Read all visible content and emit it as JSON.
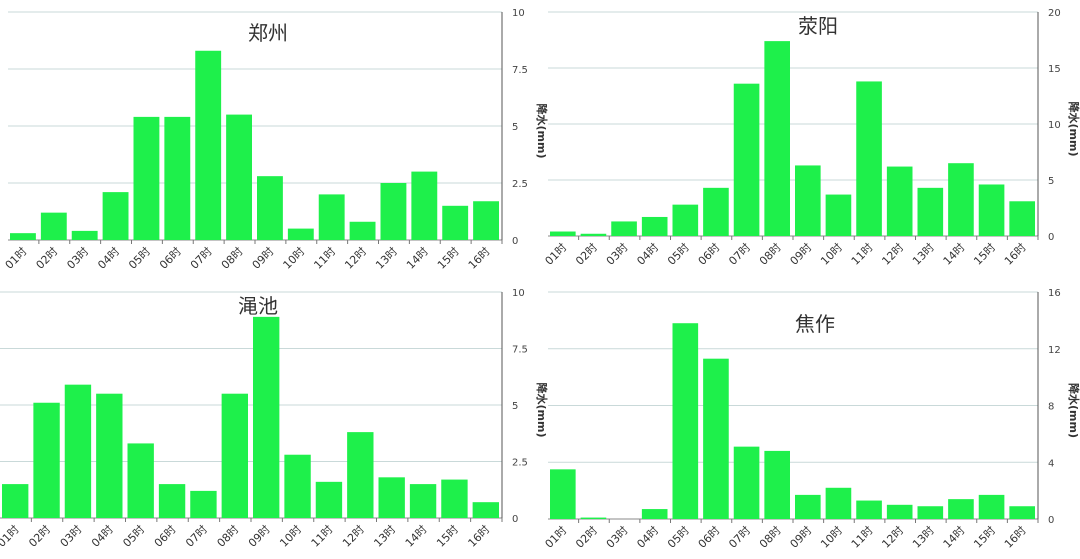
{
  "chart_data": [
    {
      "type": "bar",
      "title": "郑州",
      "ylabel": "降水(mm)",
      "ylim": [
        0,
        10
      ],
      "yticks": [
        "0",
        "2.5",
        "5",
        "7.5",
        "10"
      ],
      "bar_color": "#1ef04b",
      "grid": true,
      "categories": [
        "01时",
        "02时",
        "03时",
        "04时",
        "05时",
        "06时",
        "07时",
        "08时",
        "09时",
        "10时",
        "11时",
        "12时",
        "13时",
        "14时",
        "15时",
        "16时"
      ],
      "values": [
        0.3,
        1.2,
        0.4,
        2.1,
        5.4,
        5.4,
        8.3,
        5.5,
        2.8,
        0.5,
        2.0,
        0.8,
        2.5,
        3.0,
        1.5,
        1.7
      ]
    },
    {
      "type": "bar",
      "title": "荥阳",
      "ylabel": "降水(mm)",
      "ylim": [
        0,
        20
      ],
      "yticks": [
        "0",
        "5",
        "10",
        "15",
        "20"
      ],
      "bar_color": "#1ef04b",
      "grid": true,
      "categories": [
        "01时",
        "02时",
        "03时",
        "04时",
        "05时",
        "06时",
        "07时",
        "08时",
        "09时",
        "10时",
        "11时",
        "12时",
        "13时",
        "14时",
        "15时",
        "16时"
      ],
      "values": [
        0.4,
        0.2,
        1.3,
        1.7,
        2.8,
        4.3,
        13.6,
        17.4,
        6.3,
        3.7,
        13.8,
        6.2,
        4.3,
        6.5,
        4.6,
        3.1
      ]
    },
    {
      "type": "bar",
      "title": "渑池",
      "ylabel": "降水(mm)",
      "ylim": [
        0,
        10
      ],
      "yticks": [
        "0",
        "2.5",
        "5",
        "7.5",
        "10"
      ],
      "bar_color": "#1ef04b",
      "grid": true,
      "categories": [
        "01时",
        "02时",
        "03时",
        "04时",
        "05时",
        "06时",
        "07时",
        "08时",
        "09时",
        "10时",
        "11时",
        "12时",
        "13时",
        "14时",
        "15时",
        "16时"
      ],
      "values": [
        1.5,
        5.1,
        5.9,
        5.5,
        3.3,
        1.5,
        1.2,
        5.5,
        8.9,
        2.8,
        1.6,
        3.8,
        1.8,
        1.5,
        1.7,
        0.7
      ]
    },
    {
      "type": "bar",
      "title": "焦作",
      "ylabel": "降水(mm)",
      "ylim": [
        0,
        16
      ],
      "yticks": [
        "0",
        "4",
        "8",
        "12",
        "16"
      ],
      "bar_color": "#1ef04b",
      "grid": true,
      "categories": [
        "01时",
        "02时",
        "03时",
        "04时",
        "05时",
        "06时",
        "07时",
        "08时",
        "09时",
        "10时",
        "11时",
        "12时",
        "13时",
        "14时",
        "15时",
        "16时"
      ],
      "values": [
        3.5,
        0.1,
        0,
        0.7,
        13.8,
        11.3,
        5.1,
        4.8,
        1.7,
        2.2,
        1.3,
        1.0,
        0.9,
        1.4,
        1.7,
        0.9
      ]
    }
  ]
}
